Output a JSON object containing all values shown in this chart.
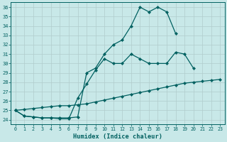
{
  "xlabel": "Humidex (Indice chaleur)",
  "background_color": "#c8e8e8",
  "grid_color": "#b0cccc",
  "line_color": "#006060",
  "xlim": [
    -0.5,
    23.5
  ],
  "ylim": [
    23.5,
    36.5
  ],
  "yticks": [
    24,
    25,
    26,
    27,
    28,
    29,
    30,
    31,
    32,
    33,
    34,
    35,
    36
  ],
  "xticks": [
    0,
    1,
    2,
    3,
    4,
    5,
    6,
    7,
    8,
    9,
    10,
    11,
    12,
    13,
    14,
    15,
    16,
    17,
    18,
    19,
    20,
    21,
    22,
    23
  ],
  "line1_y": [
    25.0,
    24.4,
    24.3,
    24.2,
    24.2,
    24.2,
    24.2,
    24.3,
    29.0,
    29.5,
    31.0,
    32.0,
    32.5,
    34.0,
    36.0,
    35.5,
    36.0,
    35.5,
    33.2,
    null,
    null,
    null,
    null,
    null
  ],
  "line2_y": [
    25.0,
    24.4,
    24.3,
    24.2,
    24.2,
    24.1,
    24.1,
    26.3,
    27.8,
    29.3,
    30.5,
    30.0,
    30.0,
    31.0,
    30.5,
    30.0,
    30.0,
    30.0,
    31.2,
    31.0,
    29.5,
    null,
    null,
    null
  ],
  "line3_y": [
    25.0,
    25.1,
    25.2,
    25.3,
    25.4,
    25.5,
    25.5,
    25.6,
    25.7,
    25.9,
    26.1,
    26.3,
    26.5,
    26.7,
    26.9,
    27.1,
    27.3,
    27.5,
    27.7,
    27.9,
    28.0,
    28.1,
    28.2,
    28.3
  ]
}
